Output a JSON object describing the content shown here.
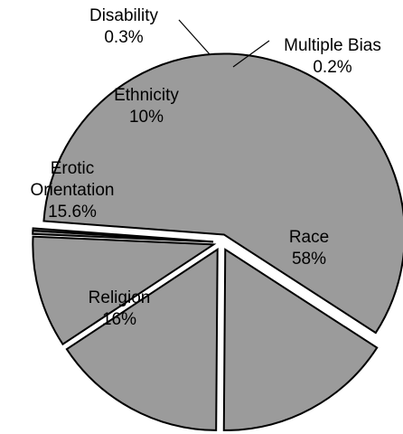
{
  "chart_data": {
    "type": "pie",
    "title": "",
    "legend": "none",
    "explode": "all slices",
    "colors": {
      "slice_fill": "#9b9b9b",
      "slice_stroke": "#000000",
      "text": "#000000"
    },
    "slices": [
      {
        "label": "Race",
        "value": 58,
        "value_label": "58%"
      },
      {
        "label": "Religion",
        "value": 16,
        "value_label": "16%"
      },
      {
        "label": "Erotic Orientation",
        "value": 15.6,
        "value_label": "15.6%"
      },
      {
        "label": "Ethnicity",
        "value": 10,
        "value_label": "10%"
      },
      {
        "label": "Disability",
        "value": 0.3,
        "value_label": "0.3%"
      },
      {
        "label": "Multiple Bias",
        "value": 0.2,
        "value_label": "0.2%"
      }
    ]
  }
}
